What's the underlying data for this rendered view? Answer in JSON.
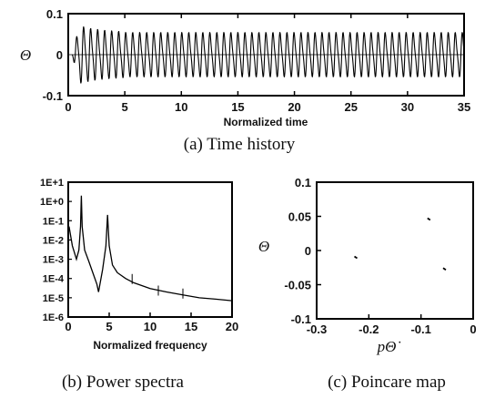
{
  "chart_data": [
    {
      "type": "line",
      "caption": "(a)  Time history",
      "xlabel": "Normalized time",
      "ylabel": "Θ",
      "xlim": [
        0,
        35
      ],
      "ylim": [
        -0.1,
        0.1
      ],
      "xticks": [
        "0",
        "5",
        "10",
        "15",
        "20",
        "25",
        "30",
        "35"
      ],
      "yticks": [
        "0.1",
        "0",
        "-0.1"
      ],
      "signal": {
        "description_values": {
          "steady_amplitude": 0.05,
          "transient_peak": 0.065,
          "period": 0.62
        }
      }
    },
    {
      "type": "line",
      "caption": "(b)  Power spectra",
      "xlabel": "Normalized frequency",
      "ylabel": "",
      "xlim": [
        0,
        20
      ],
      "y_scale": "log",
      "ylim": [
        1e-06,
        10
      ],
      "xticks": [
        "0",
        "5",
        "10",
        "15",
        "20"
      ],
      "yticks": [
        "1E+1",
        "1E+0",
        "1E-1",
        "1E-2",
        "1E-3",
        "1E-4",
        "1E-5",
        "1E-6"
      ],
      "peaks": [
        {
          "x": 1.6,
          "y": 2.0
        },
        {
          "x": 4.8,
          "y": 0.2
        }
      ],
      "x": [
        0.1,
        0.5,
        1.0,
        1.3,
        1.5,
        1.6,
        1.7,
        2.0,
        2.5,
        3.0,
        3.5,
        3.7,
        4.2,
        4.6,
        4.8,
        5.0,
        5.4,
        6.0,
        7.0,
        8.0,
        10.0,
        12.0,
        14.0,
        16.0,
        18.0,
        20.0
      ],
      "y": [
        0.05,
        0.005,
        0.001,
        0.003,
        0.05,
        2.0,
        0.05,
        0.003,
        0.0008,
        0.0002,
        5e-05,
        2e-05,
        0.0003,
        0.005,
        0.2,
        0.005,
        0.0005,
        0.0002,
        0.0001,
        6e-05,
        3e-05,
        2e-05,
        1.4e-05,
        1e-05,
        8.5e-06,
        7e-06
      ]
    },
    {
      "type": "scatter",
      "caption": "(c)  Poincare map",
      "xlabel": "pΘ̇",
      "ylabel": "Θ",
      "xlim": [
        -0.3,
        0
      ],
      "ylim": [
        -0.1,
        0.1
      ],
      "xticks": [
        "-0.3",
        "-0.2",
        "-0.1",
        "0"
      ],
      "yticks": [
        "0.1",
        "0.05",
        "0",
        "-0.05",
        "-0.1"
      ],
      "x": [
        -0.225,
        -0.085,
        -0.055
      ],
      "y": [
        -0.01,
        0.046,
        -0.027
      ]
    }
  ]
}
